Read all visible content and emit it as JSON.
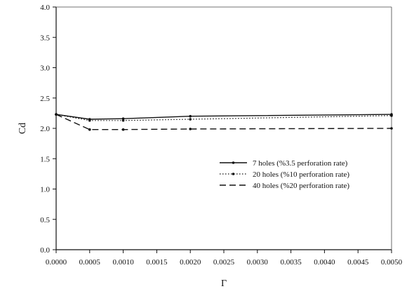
{
  "chart_data": {
    "type": "line",
    "title": "",
    "xlabel": "Γ",
    "ylabel": "Cd",
    "xlim": [
      0.0,
      0.005
    ],
    "ylim": [
      0.0,
      4.0
    ],
    "x_ticks": [
      "0.0000",
      "0.0005",
      "0.0010",
      "0.0015",
      "0.0020",
      "0.0025",
      "0.0030",
      "0.0035",
      "0.0040",
      "0.0045",
      "0.0050"
    ],
    "y_ticks": [
      "0.0",
      "0.5",
      "1.0",
      "1.5",
      "2.0",
      "2.5",
      "3.0",
      "3.5",
      "4.0"
    ],
    "grid": false,
    "legend_position": "right-middle",
    "series": [
      {
        "name": "7 holes (%3.5 perforation rate)",
        "line_style": "solid",
        "color": "#111111",
        "x": [
          0.0,
          0.0005,
          0.001,
          0.002,
          0.005
        ],
        "y": [
          2.23,
          2.15,
          2.16,
          2.2,
          2.23
        ]
      },
      {
        "name": "20 holes (%10 perforation rate)",
        "line_style": "dotted",
        "color": "#111111",
        "x": [
          0.0,
          0.0005,
          0.001,
          0.002,
          0.005
        ],
        "y": [
          2.23,
          2.13,
          2.13,
          2.15,
          2.21
        ]
      },
      {
        "name": "40 holes (%20 perforation rate)",
        "line_style": "dashed",
        "color": "#111111",
        "x": [
          0.0,
          0.0005,
          0.001,
          0.002,
          0.005
        ],
        "y": [
          2.23,
          1.98,
          1.98,
          1.99,
          2.0
        ]
      }
    ]
  }
}
